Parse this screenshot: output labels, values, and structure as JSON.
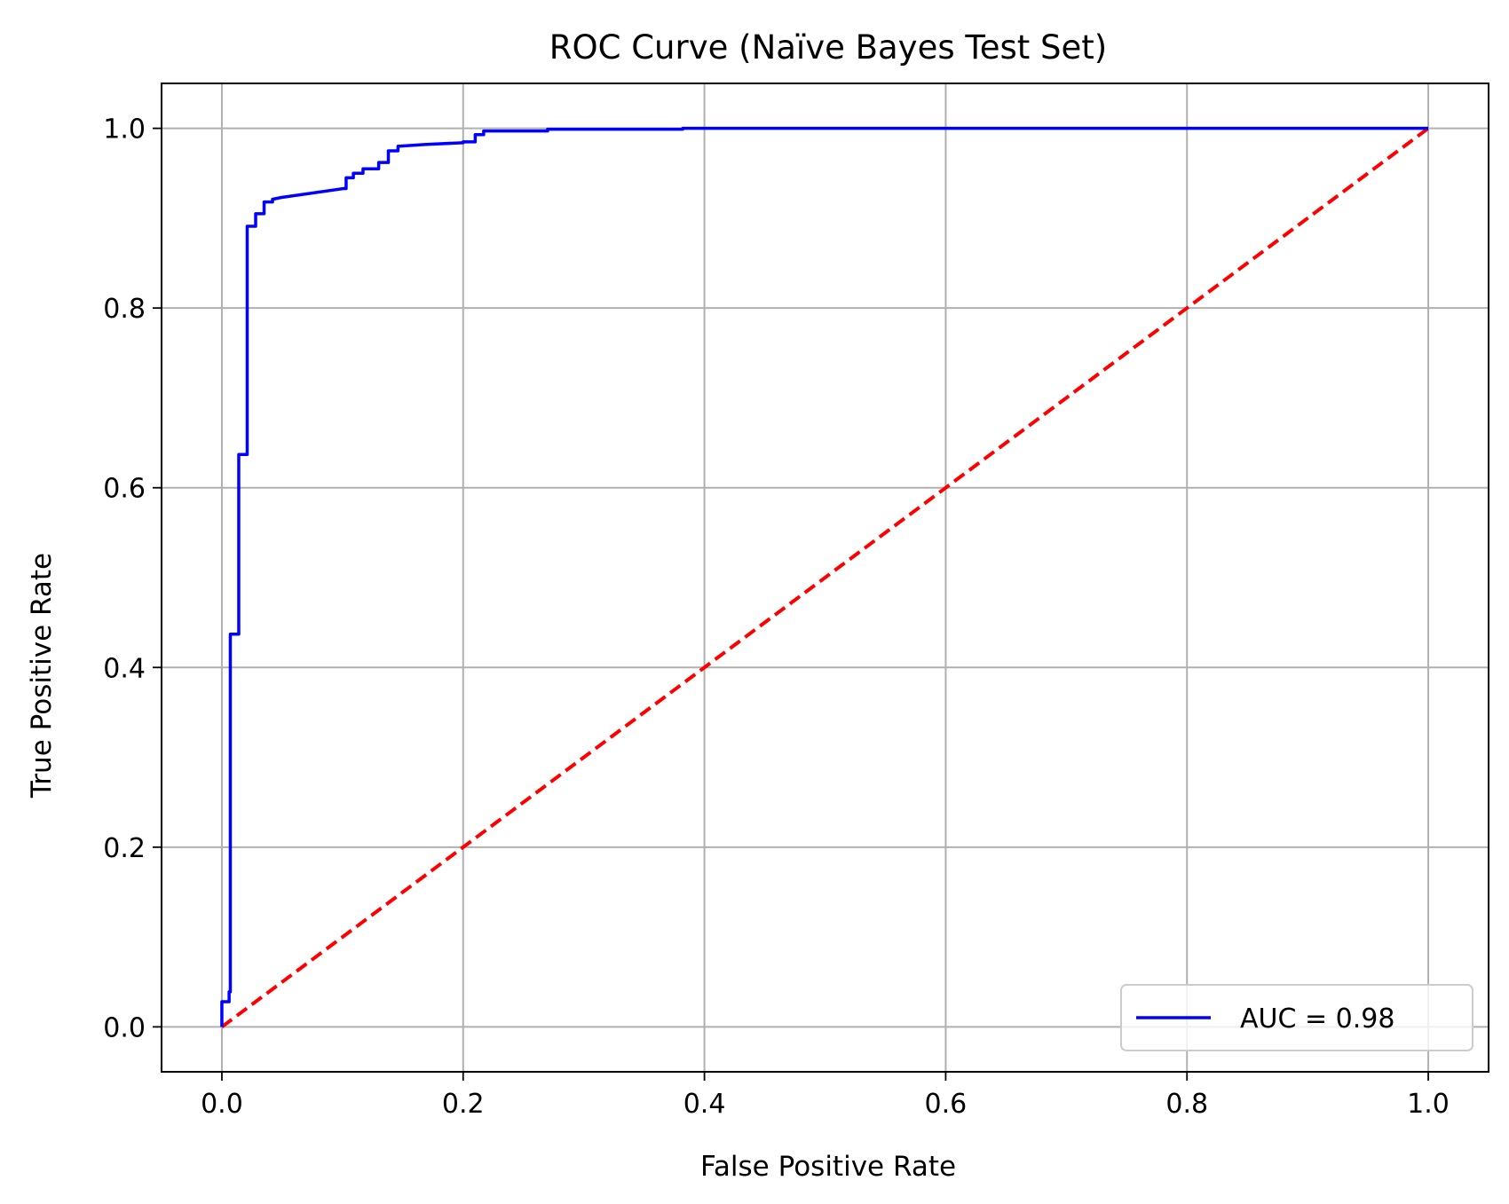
{
  "chart_data": {
    "type": "line",
    "title": "ROC Curve (Naïve Bayes Test Set)",
    "xlabel": "False Positive Rate",
    "ylabel": "True Positive Rate",
    "xlim": [
      -0.05,
      1.05
    ],
    "ylim": [
      -0.05,
      1.05
    ],
    "grid": true,
    "legend_position": "bottom-right",
    "x_ticks": [
      {
        "value": 0.0,
        "label": "0.0"
      },
      {
        "value": 0.2,
        "label": "0.2"
      },
      {
        "value": 0.4,
        "label": "0.4"
      },
      {
        "value": 0.6,
        "label": "0.6"
      },
      {
        "value": 0.8,
        "label": "0.8"
      },
      {
        "value": 1.0,
        "label": "1.0"
      }
    ],
    "y_ticks": [
      {
        "value": 0.0,
        "label": "0.0"
      },
      {
        "value": 0.2,
        "label": "0.2"
      },
      {
        "value": 0.4,
        "label": "0.4"
      },
      {
        "value": 0.6,
        "label": "0.6"
      },
      {
        "value": 0.8,
        "label": "0.8"
      },
      {
        "value": 1.0,
        "label": "1.0"
      }
    ],
    "series": [
      {
        "name": "AUC = 0.98",
        "color": "#0000ff",
        "style": "solid",
        "x": [
          0.0,
          0.0,
          0.006,
          0.006,
          0.007,
          0.007,
          0.014,
          0.014,
          0.021,
          0.021,
          0.028,
          0.028,
          0.035,
          0.035,
          0.042,
          0.042,
          0.049,
          0.101,
          0.103,
          0.103,
          0.109,
          0.109,
          0.117,
          0.117,
          0.13,
          0.13,
          0.138,
          0.138,
          0.146,
          0.146,
          0.168,
          0.2,
          0.2,
          0.21,
          0.21,
          0.217,
          0.217,
          0.27,
          0.27,
          0.382,
          0.382,
          1.0
        ],
        "y": [
          0.0,
          0.028,
          0.028,
          0.039,
          0.039,
          0.437,
          0.437,
          0.637,
          0.637,
          0.891,
          0.891,
          0.905,
          0.905,
          0.918,
          0.918,
          0.921,
          0.923,
          0.933,
          0.933,
          0.945,
          0.945,
          0.95,
          0.95,
          0.955,
          0.955,
          0.962,
          0.962,
          0.975,
          0.975,
          0.98,
          0.982,
          0.984,
          0.985,
          0.985,
          0.993,
          0.993,
          0.997,
          0.997,
          0.999,
          0.999,
          1.0,
          1.0
        ]
      },
      {
        "name": "",
        "color": "#ff0000",
        "style": "dashed",
        "x": [
          0.0,
          1.0
        ],
        "y": [
          0.0,
          1.0
        ]
      }
    ],
    "legend": [
      {
        "label": "AUC = 0.98",
        "color": "#0000ff"
      }
    ]
  }
}
